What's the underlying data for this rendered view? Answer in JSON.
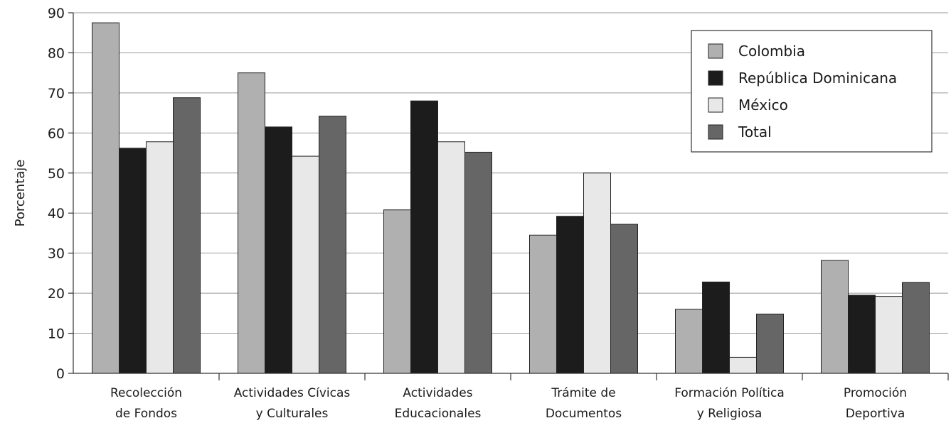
{
  "chart_data": {
    "type": "bar",
    "ylabel": "Porcentaje",
    "ylim": [
      0,
      90
    ],
    "yticks": [
      "0",
      "10",
      "20",
      "30",
      "40",
      "50",
      "60",
      "70",
      "80",
      "90"
    ],
    "grid": true,
    "legend_position": "top-right",
    "categories": [
      [
        "Recolección",
        "de Fondos"
      ],
      [
        "Actividades Cívicas",
        "y Culturales"
      ],
      [
        "Actividades",
        "Educacionales"
      ],
      [
        "Trámite de",
        "Documentos"
      ],
      [
        "Formación Política",
        "y Religiosa"
      ],
      [
        "Promoción",
        "Deportiva"
      ]
    ],
    "series": [
      {
        "name": "Colombia",
        "color": "#b0b0b0",
        "values": [
          87.5,
          75,
          40.8,
          34.5,
          16,
          28.2
        ]
      },
      {
        "name": "República Dominicana",
        "color": "#1c1c1c",
        "values": [
          56.2,
          61.5,
          68,
          39.2,
          22.8,
          19.5
        ]
      },
      {
        "name": "México",
        "color": "#e8e8e8",
        "values": [
          57.8,
          54.2,
          57.8,
          50,
          4,
          19.2
        ]
      },
      {
        "name": "Total",
        "color": "#666666",
        "values": [
          68.8,
          64.2,
          55.2,
          37.2,
          14.8,
          22.7
        ]
      }
    ]
  }
}
